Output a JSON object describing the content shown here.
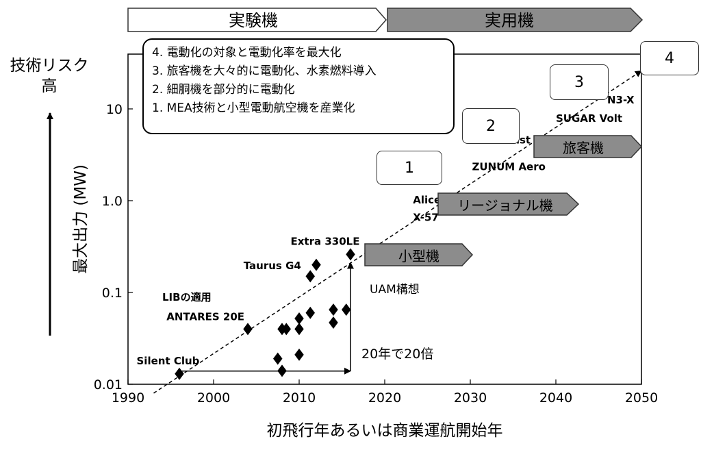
{
  "phases": {
    "experimental": "実験機",
    "practical": "実用機"
  },
  "risk_label": {
    "line1": "技術リスク",
    "line2": "高"
  },
  "roadmap": [
    "4. 電動化の対象と電動化率を最大化",
    "3. 旅客機を大々的に電動化、水素燃料導入",
    "2. 細胴機を部分的に電動化",
    "1. MEA技術と小型電動航空機を産業化"
  ],
  "stages": [
    "1",
    "2",
    "3",
    "4"
  ],
  "categories": {
    "small": "小型機",
    "regional": "リージョナル機",
    "passenger": "旅客機"
  },
  "annotations": {
    "uam": "UAM構想",
    "growth": "20年で20倍",
    "lib": "LIBの適用"
  },
  "colors": {
    "category_fill": "#8c8c8c",
    "marker": "#000000",
    "trend": "#000000"
  },
  "chart_data": {
    "type": "scatter",
    "title": "",
    "xlabel": "初飛行年あるいは商業運航開始年",
    "ylabel": "最大出力 (MW)",
    "xlim": [
      1990,
      2050
    ],
    "ylim": [
      0.01,
      30
    ],
    "y_scale": "log",
    "x_ticks": [
      "1990",
      "2000",
      "2010",
      "2020",
      "2030",
      "2040",
      "2050"
    ],
    "y_ticks": [
      {
        "value": 0.01,
        "label": "0.01"
      },
      {
        "value": 0.1,
        "label": "0.1"
      },
      {
        "value": 1.0,
        "label": "1.0"
      },
      {
        "value": 10,
        "label": "10"
      }
    ],
    "grid": false,
    "points": [
      {
        "x": 1996,
        "y": 0.013
      },
      {
        "x": 2004,
        "y": 0.04
      },
      {
        "x": 2007.5,
        "y": 0.019
      },
      {
        "x": 2008,
        "y": 0.014
      },
      {
        "x": 2008,
        "y": 0.04
      },
      {
        "x": 2008.5,
        "y": 0.04
      },
      {
        "x": 2010,
        "y": 0.021
      },
      {
        "x": 2010,
        "y": 0.04
      },
      {
        "x": 2010,
        "y": 0.052
      },
      {
        "x": 2011.3,
        "y": 0.06
      },
      {
        "x": 2011.3,
        "y": 0.15
      },
      {
        "x": 2012,
        "y": 0.2
      },
      {
        "x": 2014,
        "y": 0.047
      },
      {
        "x": 2014,
        "y": 0.065
      },
      {
        "x": 2015.5,
        "y": 0.065
      },
      {
        "x": 2016,
        "y": 0.26
      }
    ],
    "trend": {
      "from": [
        1993,
        0.008
      ],
      "to": [
        2050,
        26
      ]
    },
    "point_labels": [
      {
        "text": "Silent Club",
        "x": 1991,
        "y": 0.0165
      },
      {
        "text": "ANTARES 20E",
        "x": 1994.5,
        "y": 0.05
      },
      {
        "text": "Taurus G4",
        "x": 2003.5,
        "y": 0.18
      },
      {
        "text": "Extra 330LE",
        "x": 2009,
        "y": 0.33
      },
      {
        "text": "Alice",
        "x": 2023.3,
        "y": 0.93
      },
      {
        "text": "X-57",
        "x": 2023.3,
        "y": 0.6
      },
      {
        "text": "ZUNUM Aero",
        "x": 2030.2,
        "y": 2.15
      },
      {
        "text": "E-Thrust",
        "x": 2031.5,
        "y": 4.2
      },
      {
        "text": "SUGAR Volt",
        "x": 2040,
        "y": 7.2
      },
      {
        "text": "N3-X",
        "x": 2046,
        "y": 11.5
      }
    ]
  }
}
